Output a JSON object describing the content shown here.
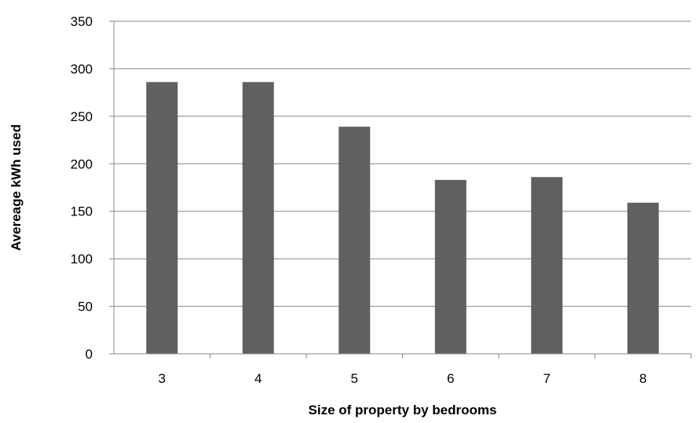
{
  "chart_data": {
    "type": "bar",
    "categories": [
      "3",
      "4",
      "5",
      "6",
      "7",
      "8"
    ],
    "values": [
      286,
      286,
      239,
      183,
      186,
      159
    ],
    "title": "",
    "xlabel": "Size of property by bedrooms",
    "ylabel": "Avereage kWh used",
    "ylim": [
      0,
      350
    ],
    "yticks": [
      "0",
      "50",
      "100",
      "150",
      "200",
      "250",
      "300",
      "350"
    ],
    "grid": true,
    "legend": "none",
    "colors": {
      "bar": "#606060",
      "grid": "#888888",
      "axis": "#888888"
    }
  }
}
